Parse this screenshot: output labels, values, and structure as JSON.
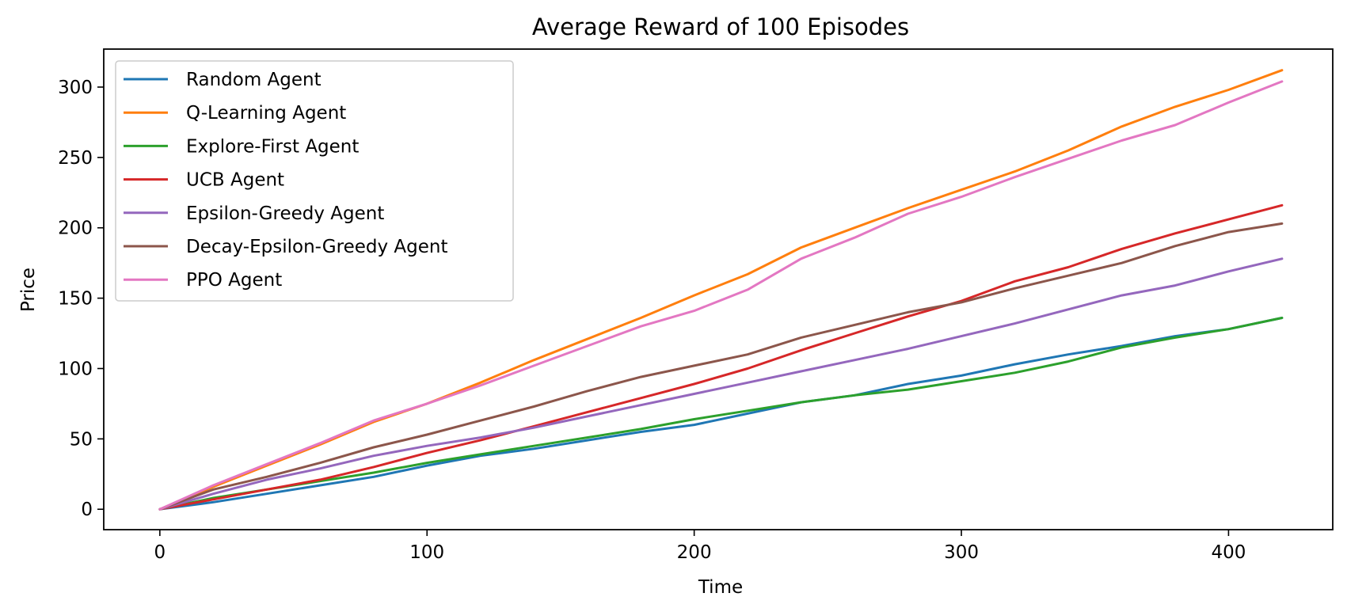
{
  "chart_data": {
    "type": "line",
    "title": "Average Reward of 100 Episodes",
    "xlabel": "Time",
    "ylabel": "Price",
    "xlim": [
      -21,
      439
    ],
    "ylim": [
      -14.5,
      327
    ],
    "xticks": [
      0,
      100,
      200,
      300,
      400
    ],
    "yticks": [
      0,
      50,
      100,
      150,
      200,
      250,
      300
    ],
    "grid": false,
    "legend_position": "upper left",
    "series": [
      {
        "name": "Random Agent",
        "color": "#1f77b4",
        "x": [
          0,
          20,
          40,
          60,
          80,
          100,
          120,
          140,
          160,
          180,
          200,
          220,
          240,
          260,
          280,
          300,
          320,
          340,
          360,
          380,
          400,
          420
        ],
        "y": [
          0,
          5,
          11,
          17,
          23,
          31,
          38,
          43,
          49,
          55,
          60,
          68,
          76,
          81,
          89,
          95,
          103,
          110,
          116,
          123,
          128,
          136
        ]
      },
      {
        "name": "Q-Learning Agent",
        "color": "#ff7f0e",
        "x": [
          0,
          20,
          40,
          60,
          80,
          100,
          120,
          140,
          160,
          180,
          200,
          220,
          240,
          260,
          280,
          300,
          320,
          340,
          360,
          380,
          400,
          420
        ],
        "y": [
          0,
          16,
          31,
          46,
          62,
          75,
          90,
          106,
          121,
          136,
          152,
          167,
          186,
          200,
          214,
          227,
          240,
          255,
          272,
          286,
          298,
          312
        ]
      },
      {
        "name": "Explore-First Agent",
        "color": "#2ca02c",
        "x": [
          0,
          20,
          40,
          60,
          80,
          100,
          120,
          140,
          160,
          180,
          200,
          220,
          240,
          260,
          280,
          300,
          320,
          340,
          360,
          380,
          400,
          420
        ],
        "y": [
          0,
          8,
          14,
          20,
          26,
          33,
          39,
          45,
          51,
          57,
          64,
          70,
          76,
          81,
          85,
          91,
          97,
          105,
          115,
          122,
          128,
          136
        ]
      },
      {
        "name": "UCB Agent",
        "color": "#d62728",
        "x": [
          0,
          20,
          40,
          60,
          80,
          100,
          120,
          140,
          160,
          180,
          200,
          220,
          240,
          260,
          280,
          300,
          320,
          340,
          360,
          380,
          400,
          420
        ],
        "y": [
          0,
          7,
          14,
          21,
          30,
          40,
          49,
          59,
          69,
          79,
          89,
          100,
          113,
          125,
          137,
          148,
          162,
          172,
          185,
          196,
          206,
          216
        ]
      },
      {
        "name": "Epsilon-Greedy Agent",
        "color": "#9467bd",
        "x": [
          0,
          20,
          40,
          60,
          80,
          100,
          120,
          140,
          160,
          180,
          200,
          220,
          240,
          260,
          280,
          300,
          320,
          340,
          360,
          380,
          400,
          420
        ],
        "y": [
          0,
          11,
          21,
          29,
          38,
          45,
          51,
          58,
          66,
          74,
          82,
          90,
          98,
          106,
          114,
          123,
          132,
          142,
          152,
          159,
          169,
          178
        ]
      },
      {
        "name": "Decay-Epsilon-Greedy Agent",
        "color": "#8c564b",
        "x": [
          0,
          20,
          40,
          60,
          80,
          100,
          120,
          140,
          160,
          180,
          200,
          220,
          240,
          260,
          280,
          300,
          320,
          340,
          360,
          380,
          400,
          420
        ],
        "y": [
          0,
          14,
          23,
          33,
          44,
          53,
          63,
          73,
          84,
          94,
          102,
          110,
          122,
          131,
          140,
          147,
          157,
          166,
          175,
          187,
          197,
          203
        ]
      },
      {
        "name": "PPO Agent",
        "color": "#e377c2",
        "x": [
          0,
          20,
          40,
          60,
          80,
          100,
          120,
          140,
          160,
          180,
          200,
          220,
          240,
          260,
          280,
          300,
          320,
          340,
          360,
          380,
          400,
          420
        ],
        "y": [
          0,
          17,
          32,
          47,
          63,
          75,
          88,
          102,
          116,
          130,
          141,
          156,
          178,
          193,
          210,
          222,
          236,
          249,
          262,
          273,
          289,
          304
        ]
      }
    ]
  }
}
